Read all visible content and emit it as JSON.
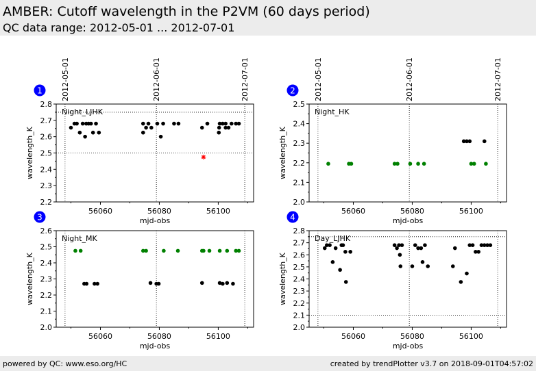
{
  "header": {
    "title": "AMBER: Cutoff wavelength in the P2VM (60 days period)",
    "subtitle": "QC data range: 2012-05-01 ... 2012-07-01"
  },
  "footer": {
    "left": "powered by QC: www.eso.org/HC",
    "right": "created by trendPlotter v3.7 on 2018-09-01T04:57:02"
  },
  "colors": {
    "normal": "#000000",
    "green": "#008000",
    "outlier": "#ff0000",
    "badge": "#0000ff",
    "background": "#ececec"
  },
  "chart_data": [
    {
      "type": "scatter",
      "badge": "1",
      "label": "Night_LJHK",
      "xlabel": "mjd-obs",
      "ylabel": "wavelength_K",
      "xlim": [
        56045,
        56112
      ],
      "ylim": [
        2.2,
        2.8
      ],
      "xticks": [
        56060,
        56080,
        56100
      ],
      "yticks": [
        2.2,
        2.3,
        2.4,
        2.5,
        2.6,
        2.7,
        2.8
      ],
      "date_markers": [
        {
          "x": 56048,
          "label": "2012-05-01"
        },
        {
          "x": 56079,
          "label": "2012-06-01"
        },
        {
          "x": 56109,
          "label": "2012-07-01"
        }
      ],
      "hlines": [
        2.75,
        2.5
      ],
      "series": [
        {
          "color": "black",
          "marker": "dot",
          "points": [
            [
              56050.0,
              2.655
            ],
            [
              56051.2,
              2.68
            ],
            [
              56052.0,
              2.68
            ],
            [
              56053.0,
              2.625
            ],
            [
              56054.0,
              2.68
            ],
            [
              56054.8,
              2.6
            ],
            [
              56055.2,
              2.68
            ],
            [
              56056.0,
              2.68
            ],
            [
              56056.8,
              2.68
            ],
            [
              56057.5,
              2.625
            ],
            [
              56058.5,
              2.68
            ],
            [
              56059.5,
              2.625
            ],
            [
              56074.5,
              2.625
            ],
            [
              56074.5,
              2.68
            ],
            [
              56075.5,
              2.655
            ],
            [
              56076.3,
              2.68
            ],
            [
              56077.3,
              2.655
            ],
            [
              56079.3,
              2.68
            ],
            [
              56080.5,
              2.6
            ],
            [
              56081.3,
              2.68
            ],
            [
              56085.0,
              2.68
            ],
            [
              56086.5,
              2.68
            ],
            [
              56094.5,
              2.655
            ],
            [
              56096.3,
              2.68
            ],
            [
              56100.2,
              2.625
            ],
            [
              56100.3,
              2.655
            ],
            [
              56100.5,
              2.68
            ],
            [
              56101.5,
              2.68
            ],
            [
              56102.5,
              2.68
            ],
            [
              56102.5,
              2.655
            ],
            [
              56103.5,
              2.655
            ],
            [
              56104.5,
              2.68
            ],
            [
              56106.0,
              2.68
            ],
            [
              56107.0,
              2.68
            ]
          ]
        },
        {
          "color": "red",
          "marker": "star",
          "points": [
            [
              56095.0,
              2.475
            ]
          ]
        }
      ]
    },
    {
      "type": "scatter",
      "badge": "2",
      "label": "Night_HK",
      "xlabel": "mjd-obs",
      "ylabel": "wavelength_K",
      "xlim": [
        56045,
        56112
      ],
      "ylim": [
        2.0,
        2.5
      ],
      "xticks": [
        56060,
        56080,
        56100
      ],
      "yticks": [
        2.0,
        2.1,
        2.2,
        2.3,
        2.4,
        2.5
      ],
      "date_markers": [
        {
          "x": 56048,
          "label": "2012-05-01"
        },
        {
          "x": 56079,
          "label": "2012-06-01"
        },
        {
          "x": 56109,
          "label": "2012-07-01"
        }
      ],
      "hlines": [],
      "series": [
        {
          "color": "green",
          "marker": "dot",
          "points": [
            [
              56051.5,
              2.195
            ],
            [
              56058.5,
              2.195
            ],
            [
              56059.3,
              2.195
            ],
            [
              56074.0,
              2.195
            ],
            [
              56075.0,
              2.195
            ],
            [
              56079.3,
              2.195
            ],
            [
              56082.0,
              2.195
            ],
            [
              56084.0,
              2.195
            ],
            [
              56100.0,
              2.195
            ],
            [
              56101.0,
              2.195
            ],
            [
              56105.0,
              2.195
            ]
          ]
        },
        {
          "color": "black",
          "marker": "dot",
          "points": [
            [
              56097.5,
              2.31
            ],
            [
              56098.5,
              2.31
            ],
            [
              56099.5,
              2.31
            ],
            [
              56104.5,
              2.31
            ]
          ]
        }
      ]
    },
    {
      "type": "scatter",
      "badge": "3",
      "label": "Night_MK",
      "xlabel": "mjd-obs",
      "ylabel": "wavelength_K",
      "xlim": [
        56045,
        56112
      ],
      "ylim": [
        2.0,
        2.6
      ],
      "xticks": [
        56060,
        56080,
        56100
      ],
      "yticks": [
        2.0,
        2.1,
        2.2,
        2.3,
        2.4,
        2.5,
        2.6
      ],
      "date_markers": [
        {
          "x": 56048,
          "label": ""
        },
        {
          "x": 56079,
          "label": ""
        },
        {
          "x": 56109,
          "label": ""
        }
      ],
      "hlines": [],
      "series": [
        {
          "color": "green",
          "marker": "dot",
          "points": [
            [
              56051.5,
              2.475
            ],
            [
              56053.3,
              2.475
            ],
            [
              56074.5,
              2.475
            ],
            [
              56075.5,
              2.475
            ],
            [
              56081.5,
              2.475
            ],
            [
              56086.3,
              2.475
            ],
            [
              56094.5,
              2.475
            ],
            [
              56095.0,
              2.475
            ],
            [
              56097.0,
              2.475
            ],
            [
              56100.5,
              2.475
            ],
            [
              56103.0,
              2.475
            ],
            [
              56106.0,
              2.475
            ],
            [
              56107.0,
              2.475
            ]
          ]
        },
        {
          "color": "black",
          "marker": "dot",
          "points": [
            [
              56054.5,
              2.27
            ],
            [
              56055.3,
              2.27
            ],
            [
              56058.0,
              2.27
            ],
            [
              56059.0,
              2.27
            ],
            [
              56077.0,
              2.275
            ],
            [
              56079.0,
              2.27
            ],
            [
              56079.8,
              2.27
            ],
            [
              56094.5,
              2.275
            ],
            [
              56100.5,
              2.275
            ],
            [
              56101.5,
              2.27
            ],
            [
              56103.0,
              2.275
            ],
            [
              56105.0,
              2.27
            ]
          ]
        }
      ]
    },
    {
      "type": "scatter",
      "badge": "4",
      "label": "Day_LJHK",
      "xlabel": "mjd-obs",
      "ylabel": "wavelength_K",
      "xlim": [
        56045,
        56112
      ],
      "ylim": [
        2.0,
        2.8
      ],
      "xticks": [
        56060,
        56080,
        56100
      ],
      "yticks": [
        2.0,
        2.1,
        2.2,
        2.3,
        2.4,
        2.5,
        2.6,
        2.7,
        2.8
      ],
      "date_markers": [
        {
          "x": 56048,
          "label": ""
        },
        {
          "x": 56079,
          "label": ""
        },
        {
          "x": 56109,
          "label": ""
        }
      ],
      "hlines": [
        2.75,
        2.1
      ],
      "series": [
        {
          "color": "black",
          "marker": "dot",
          "points": [
            [
              56050.3,
              2.655
            ],
            [
              56051.0,
              2.68
            ],
            [
              56052.0,
              2.68
            ],
            [
              56053.0,
              2.54
            ],
            [
              56054.0,
              2.655
            ],
            [
              56055.5,
              2.475
            ],
            [
              56056.0,
              2.68
            ],
            [
              56056.5,
              2.68
            ],
            [
              56057.3,
              2.625
            ],
            [
              56057.5,
              2.375
            ],
            [
              56059.0,
              2.625
            ],
            [
              56074.0,
              2.68
            ],
            [
              56074.8,
              2.655
            ],
            [
              56075.5,
              2.68
            ],
            [
              56075.8,
              2.6
            ],
            [
              56076.0,
              2.505
            ],
            [
              56076.5,
              2.68
            ],
            [
              56080.0,
              2.505
            ],
            [
              56081.0,
              2.68
            ],
            [
              56082.0,
              2.655
            ],
            [
              56083.0,
              2.655
            ],
            [
              56083.5,
              2.54
            ],
            [
              56084.3,
              2.68
            ],
            [
              56085.3,
              2.505
            ],
            [
              56093.8,
              2.505
            ],
            [
              56094.5,
              2.655
            ],
            [
              56096.5,
              2.375
            ],
            [
              56098.5,
              2.445
            ],
            [
              56099.5,
              2.68
            ],
            [
              56100.5,
              2.68
            ],
            [
              56101.5,
              2.625
            ],
            [
              56102.5,
              2.625
            ],
            [
              56103.5,
              2.68
            ],
            [
              56104.5,
              2.68
            ],
            [
              56105.5,
              2.68
            ],
            [
              56106.5,
              2.68
            ]
          ]
        }
      ]
    }
  ]
}
